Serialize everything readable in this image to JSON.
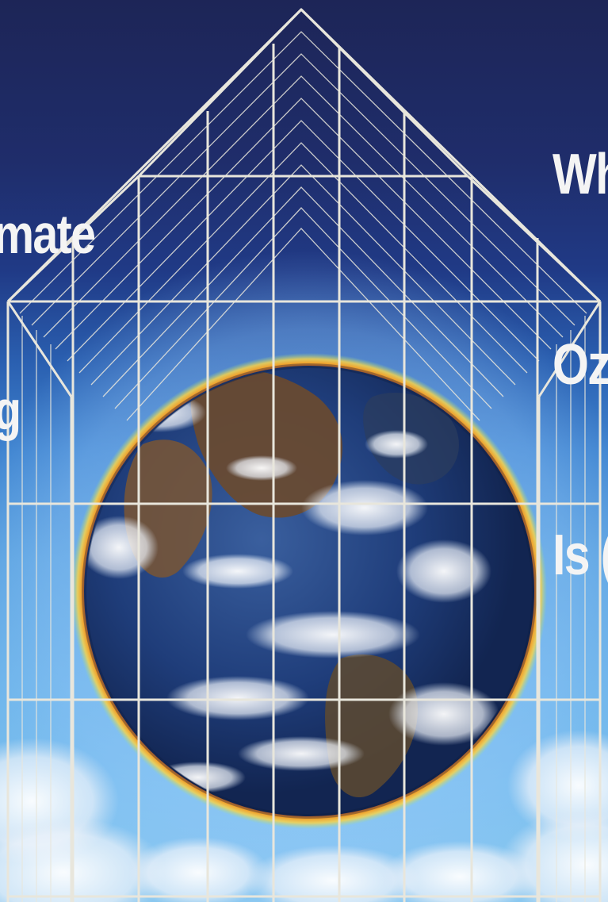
{
  "cover": {
    "headline_left": {
      "lines": [
        "mate",
        "g"
      ]
    },
    "headline_right": {
      "lines": [
        "Wh",
        "Oz",
        "Is ("
      ]
    }
  },
  "illustration": {
    "subject": "earth-globe-inside-greenhouse-frame",
    "colors": {
      "sky_top": "#1d2557",
      "sky_bottom": "#8ac8f0",
      "frame": "#e8e6dc",
      "ring_outer": "#f6d24a",
      "ring_inner": "#e0201f",
      "ocean": "#1f3d7a",
      "land": "#6b4a2e",
      "cloud": "#f4f6fa"
    }
  }
}
